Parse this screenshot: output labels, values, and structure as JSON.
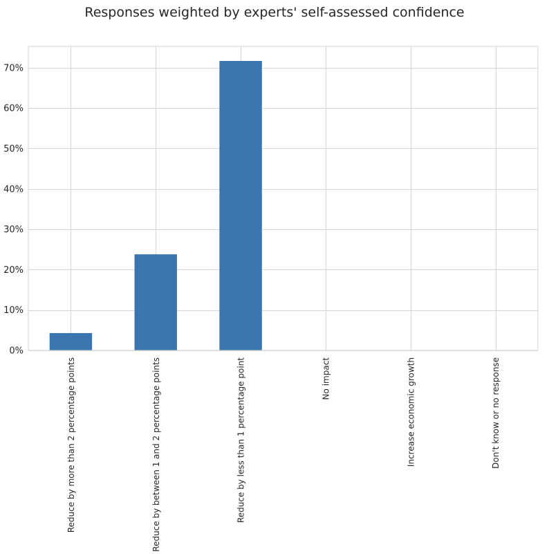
{
  "chart_data": {
    "type": "bar",
    "title": "Responses weighted by experts' self-assessed confidence",
    "xlabel": "",
    "ylabel": "",
    "categories": [
      "Reduce by more than 2 percentage points",
      "Reduce by between 1 and 2 percentage points",
      "Reduce by less than 1 percentage point",
      "No impact",
      "Increase economic growth",
      "Don't know or no response"
    ],
    "values": [
      4.3,
      23.8,
      71.7,
      0,
      0,
      0
    ],
    "ylim": [
      0,
      75.3
    ],
    "yticks": [
      0,
      10,
      20,
      30,
      40,
      50,
      60,
      70
    ],
    "ytick_labels": [
      "0%",
      "10%",
      "20%",
      "30%",
      "40%",
      "50%",
      "60%",
      "70%"
    ],
    "grid": true,
    "legend": "none",
    "bar_color": "#3a75b0",
    "grid_color": "#d6d6d6",
    "text_color": "#262626"
  }
}
